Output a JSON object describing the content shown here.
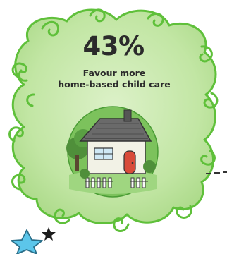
{
  "infographic": {
    "percentage": "43%",
    "caption_line1": "Favour more",
    "caption_line2": "home-based child care"
  },
  "colors": {
    "cloud_fill": "#c2e6a4",
    "cloud_stroke": "#5fc03a",
    "house_bg": "#7cc25c",
    "star_blue": "#5cc6ea",
    "text": "#2b2b2b"
  },
  "icons": [
    "house-icon",
    "star-icon",
    "small-star-icon"
  ]
}
